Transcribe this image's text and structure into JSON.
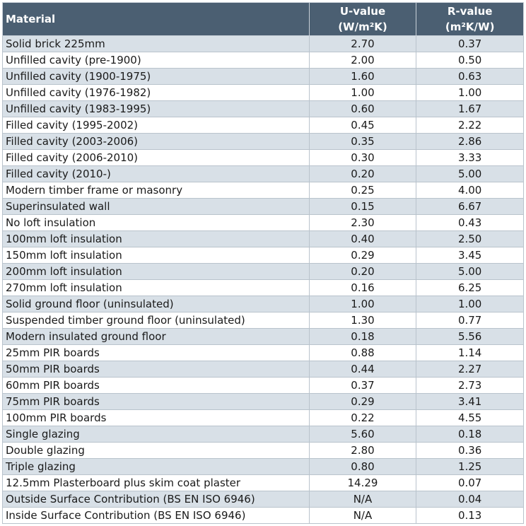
{
  "table": {
    "header": {
      "material": "Material",
      "u_title": "U-value",
      "u_unit": "(W/m²K)",
      "r_title": "R-value",
      "r_unit": "(m²K/W)"
    },
    "rows": [
      [
        "Solid brick 225mm",
        "2.70",
        "0.37"
      ],
      [
        "Unfilled cavity (pre-1900)",
        "2.00",
        "0.50"
      ],
      [
        "Unfilled cavity (1900-1975)",
        "1.60",
        "0.63"
      ],
      [
        "Unfilled cavity (1976-1982)",
        "1.00",
        "1.00"
      ],
      [
        "Unfilled cavity (1983-1995)",
        "0.60",
        "1.67"
      ],
      [
        "Filled cavity (1995-2002)",
        "0.45",
        "2.22"
      ],
      [
        "Filled cavity (2003-2006)",
        "0.35",
        "2.86"
      ],
      [
        "Filled cavity (2006-2010)",
        "0.30",
        "3.33"
      ],
      [
        "Filled cavity (2010-)",
        "0.20",
        "5.00"
      ],
      [
        "Modern timber frame or masonry",
        "0.25",
        "4.00"
      ],
      [
        "Superinsulated wall",
        "0.15",
        "6.67"
      ],
      [
        "No loft insulation",
        "2.30",
        "0.43"
      ],
      [
        "100mm loft insulation",
        "0.40",
        "2.50"
      ],
      [
        "150mm loft insulation",
        "0.29",
        "3.45"
      ],
      [
        "200mm loft insulation",
        "0.20",
        "5.00"
      ],
      [
        "270mm loft insulation",
        "0.16",
        "6.25"
      ],
      [
        "Solid ground floor (uninsulated)",
        "1.00",
        "1.00"
      ],
      [
        "Suspended timber ground floor (uninsulated)",
        "1.30",
        "0.77"
      ],
      [
        "Modern insulated ground floor",
        "0.18",
        "5.56"
      ],
      [
        "25mm PIR boards",
        "0.88",
        "1.14"
      ],
      [
        "50mm PIR boards",
        "0.44",
        "2.27"
      ],
      [
        "60mm PIR boards",
        "0.37",
        "2.73"
      ],
      [
        "75mm PIR boards",
        "0.29",
        "3.41"
      ],
      [
        "100mm PIR boards",
        "0.22",
        "4.55"
      ],
      [
        "Single glazing",
        "5.60",
        "0.18"
      ],
      [
        "Double glazing",
        "2.80",
        "0.36"
      ],
      [
        "Triple glazing",
        "0.80",
        "1.25"
      ],
      [
        "12.5mm Plasterboard plus skim coat plaster",
        "14.29",
        "0.07"
      ],
      [
        "Outside Surface Contribution (BS EN ISO 6946)",
        "N/A",
        "0.04"
      ],
      [
        "Inside Surface Contribution (BS EN ISO 6946)",
        "N/A",
        "0.13"
      ]
    ]
  }
}
